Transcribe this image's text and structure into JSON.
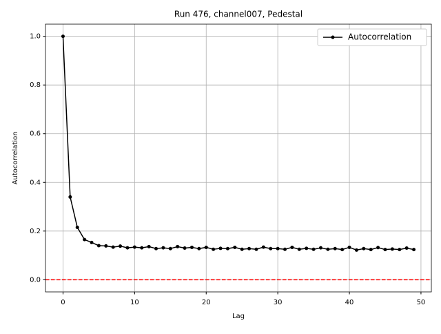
{
  "chart_data": {
    "type": "line",
    "title": "Run 476, channel007, Pedestal",
    "x_label": "Lag",
    "y_label": "Autocorrelation",
    "x": [
      0,
      1,
      2,
      3,
      4,
      5,
      6,
      7,
      8,
      9,
      10,
      11,
      12,
      13,
      14,
      15,
      16,
      17,
      18,
      19,
      20,
      21,
      22,
      23,
      24,
      25,
      26,
      27,
      28,
      29,
      30,
      31,
      32,
      33,
      34,
      35,
      36,
      37,
      38,
      39,
      40,
      41,
      42,
      43,
      44,
      45,
      46,
      47,
      48,
      49
    ],
    "series": [
      {
        "name": "Autocorrelation",
        "color": "#000000",
        "values": [
          1.0,
          0.34,
          0.215,
          0.165,
          0.153,
          0.14,
          0.139,
          0.134,
          0.138,
          0.131,
          0.134,
          0.131,
          0.136,
          0.128,
          0.131,
          0.128,
          0.136,
          0.13,
          0.133,
          0.128,
          0.133,
          0.125,
          0.129,
          0.128,
          0.133,
          0.125,
          0.128,
          0.125,
          0.134,
          0.128,
          0.128,
          0.125,
          0.133,
          0.125,
          0.129,
          0.125,
          0.131,
          0.125,
          0.128,
          0.124,
          0.133,
          0.122,
          0.128,
          0.124,
          0.132,
          0.124,
          0.126,
          0.124,
          0.13,
          0.124
        ]
      }
    ],
    "hline": {
      "value": 0,
      "color": "#ff0000"
    },
    "xlim": [
      -2.45,
      51.45
    ],
    "ylim": [
      -0.05,
      1.05
    ],
    "xticks": [
      0,
      10,
      20,
      30,
      40,
      50
    ],
    "yticks": [
      {
        "value": 0,
        "label": "0.0"
      },
      {
        "value": 0.2,
        "label": "0.2"
      },
      {
        "value": 0.4,
        "label": "0.4"
      },
      {
        "value": 0.6,
        "label": "0.6"
      },
      {
        "value": 0.8,
        "label": "0.8"
      },
      {
        "value": 1,
        "label": "1.0"
      }
    ],
    "grid": true,
    "legend": "upper right"
  }
}
